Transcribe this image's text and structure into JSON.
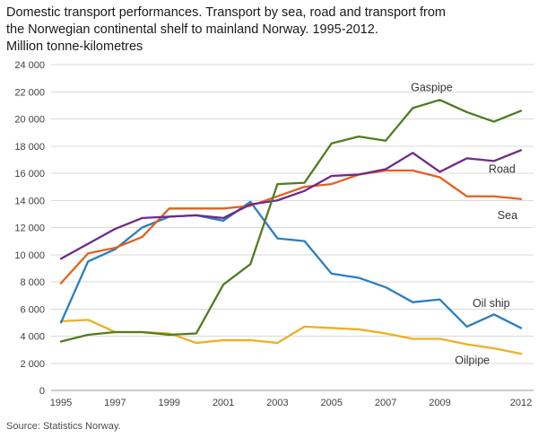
{
  "title": {
    "line1": "Domestic transport performances. Transport by sea, road and transport from",
    "line2": "the Norwegian continental shelf to mainland Norway. 1995-2012.",
    "line3": "Million tonne-kilometres"
  },
  "source": "Source: Statistics Norway.",
  "chart_data": {
    "type": "line",
    "title": "Domestic transport performances. Transport by sea, road and transport from the Norwegian continental shelf to mainland Norway. 1995-2012.",
    "ylabel": "Million tonne-kilometres",
    "xlabel": "",
    "grid": true,
    "legend_position": "inline-labels",
    "ylim": [
      0,
      24000
    ],
    "x": [
      1995,
      1996,
      1997,
      1998,
      1999,
      2000,
      2001,
      2002,
      2003,
      2004,
      2005,
      2006,
      2007,
      2008,
      2009,
      2010,
      2011,
      2012
    ],
    "xticks": [
      "1995",
      "1997",
      "1999",
      "2001",
      "2003",
      "2005",
      "2007",
      "2009",
      "2012"
    ],
    "yticks": [
      {
        "value": 0,
        "label": "0"
      },
      {
        "value": 2000,
        "label": "2 000"
      },
      {
        "value": 4000,
        "label": "4 000"
      },
      {
        "value": 6000,
        "label": "6 000"
      },
      {
        "value": 8000,
        "label": "8 000"
      },
      {
        "value": 10000,
        "label": "10 000"
      },
      {
        "value": 12000,
        "label": "12 000"
      },
      {
        "value": 14000,
        "label": "14 000"
      },
      {
        "value": 16000,
        "label": "16 000"
      },
      {
        "value": 18000,
        "label": "18 000"
      },
      {
        "value": 20000,
        "label": "20 000"
      },
      {
        "value": 22000,
        "label": "22 000"
      },
      {
        "value": 24000,
        "label": "24 000"
      }
    ],
    "series": [
      {
        "name": "Oilpipe",
        "color": "#eeb022",
        "values": [
          5100,
          5200,
          4300,
          4300,
          4200,
          3500,
          3700,
          3700,
          3500,
          4700,
          4600,
          4500,
          4200,
          3800,
          3800,
          3400,
          3100,
          2700
        ],
        "label_anchor": {
          "year": 2010.2,
          "value": 2200
        }
      },
      {
        "name": "Oil ship",
        "color": "#2a7ec1",
        "values": [
          5000,
          9500,
          10400,
          12000,
          12800,
          12900,
          12500,
          13900,
          11200,
          11000,
          8600,
          8300,
          7600,
          6500,
          6700,
          4700,
          5600,
          4600
        ],
        "label_anchor": {
          "year": 2010.9,
          "value": 6400
        }
      },
      {
        "name": "Sea",
        "color": "#e4601d",
        "values": [
          7900,
          10100,
          10500,
          11300,
          13400,
          13400,
          13400,
          13600,
          14300,
          15000,
          15200,
          15900,
          16200,
          16200,
          15700,
          14300,
          14300,
          14100
        ],
        "label_anchor": {
          "year": 2011.5,
          "value": 12900
        }
      },
      {
        "name": "Road",
        "color": "#6e2a8a",
        "values": [
          9700,
          10800,
          11900,
          12700,
          12800,
          12900,
          12700,
          13700,
          14000,
          14700,
          15800,
          15900,
          16300,
          17500,
          16100,
          17100,
          16900,
          17700
        ],
        "label_anchor": {
          "year": 2011.3,
          "value": 16300
        }
      },
      {
        "name": "Gaspipe",
        "color": "#507c20",
        "values": [
          3600,
          4100,
          4300,
          4300,
          4100,
          4200,
          7800,
          9300,
          15200,
          15300,
          18200,
          18700,
          18400,
          20800,
          21400,
          20500,
          19800,
          20600
        ],
        "label_anchor": {
          "year": 2008.7,
          "value": 22300
        }
      }
    ]
  }
}
